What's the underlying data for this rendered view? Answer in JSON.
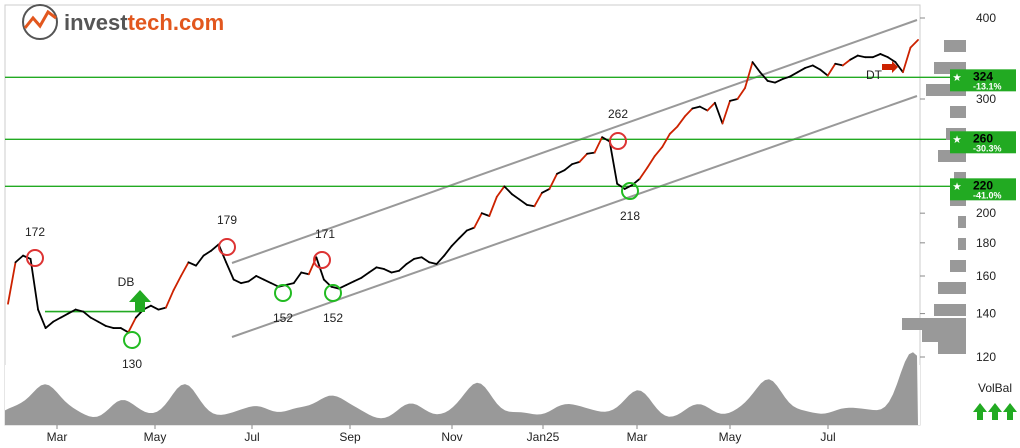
{
  "brand": {
    "part1": "invest",
    "part2": "tech.com"
  },
  "colors": {
    "price": "#000000",
    "price_up": "#cc2200",
    "channel": "#999999",
    "support_resistance": "#22aa22",
    "volume": "#999999",
    "up_arrow": "#22aa22",
    "top_circle": "#dd3333",
    "bottom_circle": "#22bb22",
    "tag": "#22aa22",
    "pattern_dt": "#cc2200"
  },
  "chart_data": {
    "type": "line",
    "y_axis": {
      "scale": "log",
      "ticks": [
        120,
        140,
        160,
        180,
        200,
        300,
        400
      ],
      "side": "right"
    },
    "x_axis": {
      "ticks": [
        "Mar",
        "May",
        "Jul",
        "Sep",
        "Nov",
        "Jan25",
        "Mar",
        "May",
        "Jul"
      ]
    },
    "series": [
      {
        "values": [
          145,
          168,
          172,
          170,
          142,
          133,
          136,
          138,
          140,
          142,
          141,
          138,
          136,
          134,
          133,
          133,
          131,
          138,
          142,
          144,
          142,
          143,
          152,
          160,
          168,
          166,
          172,
          175,
          179,
          168,
          158,
          156,
          157,
          160,
          158,
          156,
          154,
          155,
          156,
          162,
          161,
          171,
          158,
          154,
          153,
          155,
          157,
          159,
          162,
          165,
          164,
          162,
          163,
          167,
          170,
          171,
          168,
          167,
          172,
          178,
          183,
          188,
          190,
          200,
          198,
          212,
          220,
          214,
          210,
          206,
          205,
          215,
          218,
          230,
          233,
          238,
          240,
          247,
          248,
          262,
          258,
          222,
          218,
          221,
          226,
          235,
          245,
          253,
          265,
          272,
          282,
          290,
          292,
          288,
          296,
          275,
          298,
          300,
          312,
          342,
          330,
          320,
          318,
          322,
          325,
          330,
          335,
          338,
          333,
          326,
          340,
          338,
          345,
          350,
          348,
          348,
          352,
          348,
          342,
          330,
          360,
          370
        ]
      }
    ],
    "annotations": [
      {
        "type": "top",
        "label": "172"
      },
      {
        "type": "top",
        "label": "179"
      },
      {
        "type": "top",
        "label": "171"
      },
      {
        "type": "top",
        "label": "262"
      },
      {
        "type": "bottom",
        "label": "130"
      },
      {
        "type": "bottom",
        "label": "152"
      },
      {
        "type": "bottom",
        "label": "152"
      },
      {
        "type": "bottom",
        "label": "218"
      },
      {
        "type": "signal",
        "label": "DB"
      },
      {
        "type": "signal",
        "label": "DT"
      }
    ],
    "levels": [
      {
        "value": "324",
        "pct": "-13.1%"
      },
      {
        "value": "260",
        "pct": "-30.3%"
      },
      {
        "value": "220",
        "pct": "-41.0%"
      }
    ],
    "volume_label": "VolBal",
    "grid": false
  }
}
